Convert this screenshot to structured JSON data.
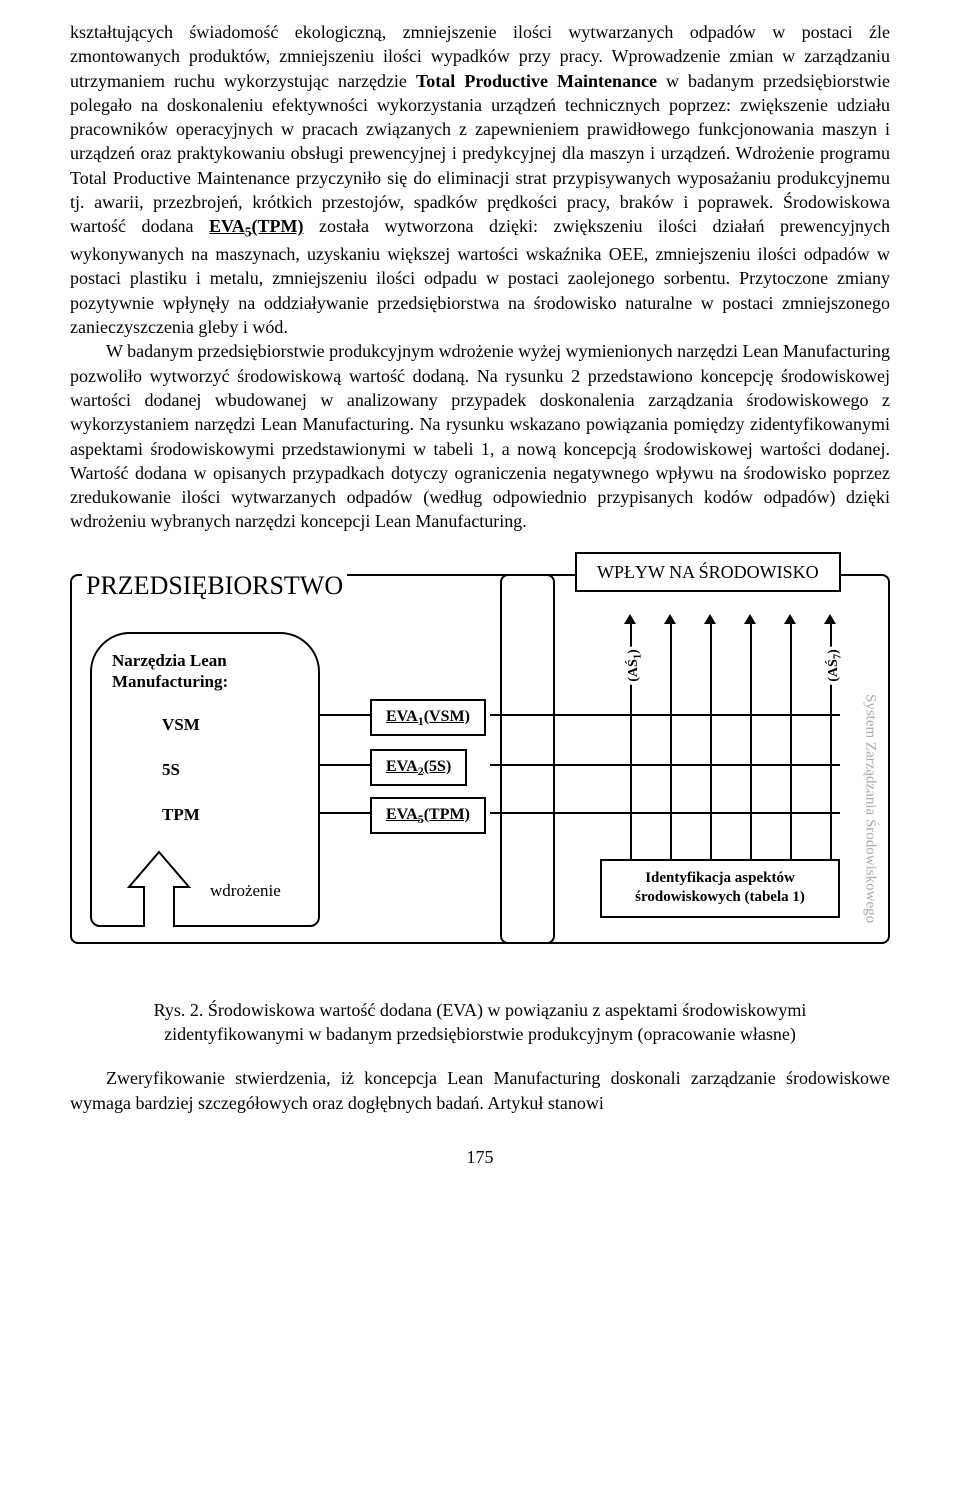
{
  "para1_html": "kształtujących świadomość ekologiczną, zmniejszenie ilości wytwarzanych odpadów w postaci źle zmontowanych produktów, zmniejszeniu ilości wypadków przy pracy. Wprowadzenie zmian w zarządzaniu utrzymaniem ruchu wykorzystując narzędzie <b>Total Productive Maintenance</b> w badanym przedsiębiorstwie polegało na doskonaleniu efektywności wykorzystania urządzeń technicznych poprzez: zwiększenie udziału pracowników operacyjnych w pracach związanych z zapewnieniem prawidłowego funkcjonowania maszyn i urządzeń oraz praktykowaniu obsługi prewencyjnej i predykcyjnej dla maszyn i urządzeń. Wdrożenie programu Total Productive Maintenance przyczyniło się do eliminacji strat przypisywanych wyposażaniu produkcyjnemu tj. awarii, przezbrojeń, krótkich przestojów, spadków prędkości pracy, braków i poprawek. Środowiskowa wartość dodana <u><b>EVA<sub>5</sub>(TPM)</b></u> została wytworzona dzięki: zwiększeniu ilości działań prewencyjnych wykonywanych na maszynach, uzyskaniu większej wartości wskaźnika OEE, zmniejszeniu ilości odpadów w postaci plastiku i metalu, zmniejszeniu ilości odpadu w postaci zaolejonego sorbentu. Przytoczone zmiany pozytywnie wpłynęły na oddziaływanie przedsiębiorstwa na środowisko naturalne w postaci zmniejszonego zanieczyszczenia gleby i wód.",
  "para2_html": "W badanym przedsiębiorstwie produkcyjnym wdrożenie wyżej wymienionych narzędzi Lean Manufacturing pozwoliło wytworzyć środowiskową wartość dodaną. Na rysunku 2 przedstawiono koncepcję środowiskowej wartości dodanej wbudowanej w analizowany przypadek doskonalenia zarządzania środowiskowego z wykorzystaniem narzędzi Lean Manufacturing. Na rysunku wskazano powiązania pomiędzy zidentyfikowanymi aspektami środowiskowymi przedstawionymi w tabeli 1, a nową koncepcją środowiskowej wartości dodanej. Wartość dodana w opisanych przypadkach dotyczy ograniczenia negatywnego wpływu na środowisko poprzez zredukowanie ilości wytwarzanych odpadów (według odpowiednio przypisanych kodów odpadów) dzięki wdrożeniu wybranych narzędzi koncepcji Lean Manufacturing.",
  "diagram": {
    "enterprise_label": "PRZEDSIĘBIORSTWO",
    "env_label": "WPŁYW NA ŚRODOWISKO",
    "tools_title": "Narzędzia Lean Manufacturing:",
    "tools": [
      "VSM",
      "5S",
      "TPM"
    ],
    "wdro": "wdrożenie",
    "eva_labels": [
      "EVA<sub>1</sub>(VSM)",
      "EVA<sub>2</sub>(5S)",
      "EVA<sub>5</sub>(TPM)"
    ],
    "as_left": "(AŚ<sub>1</sub>)",
    "as_right": "(AŚ<sub>7</sub>)",
    "aspects_html": "Identyfikacja aspektów środowiskowych (tabela 1)",
    "sys_label": "System Zarządzania Środowiskowego"
  },
  "caption_html": "Rys. 2. Środowiskowa wartość dodana (EVA) w powiązaniu z aspektami środowiskowymi zidentyfikowanymi w badanym przedsiębiorstwie produkcyjnym (opracowanie własne)",
  "para3_html": "Zweryfikowanie stwierdzenia, iż koncepcja Lean Manufacturing doskonali zarządzanie środowiskowe wymaga bardziej szczegółowych oraz dogłębnych badań. Artykuł stanowi",
  "pagenum": "175"
}
